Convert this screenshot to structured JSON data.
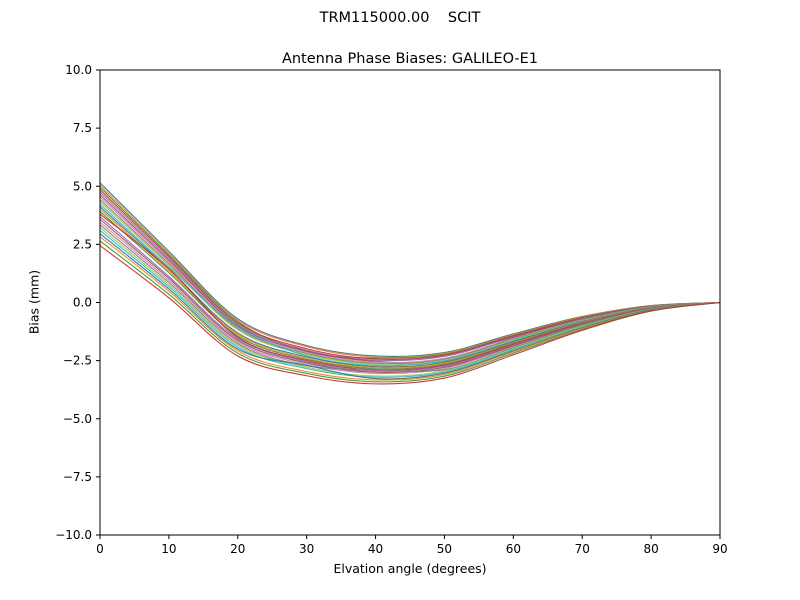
{
  "chart_data": {
    "type": "line",
    "suptitle": "TRM115000.00    SCIT",
    "title": "Antenna Phase Biases: GALILEO-E1",
    "xlabel": "Elvation angle (degrees)",
    "ylabel": "Bias (mm)",
    "xlim": [
      0,
      90
    ],
    "ylim": [
      -10,
      10
    ],
    "grid": false,
    "legend": null,
    "xticks": {
      "values": [
        0,
        10,
        20,
        30,
        40,
        50,
        60,
        70,
        80,
        90
      ],
      "labels": [
        "0",
        "10",
        "20",
        "30",
        "40",
        "50",
        "60",
        "70",
        "80",
        "90"
      ]
    },
    "yticks": {
      "values": [
        -10,
        -7.5,
        -5,
        -2.5,
        0,
        2.5,
        5,
        7.5,
        10
      ],
      "labels": [
        "−10.0",
        "−7.5",
        "−5.0",
        "−2.5",
        "0.0",
        "2.5",
        "5.0",
        "7.5",
        "10.0"
      ]
    },
    "palette": [
      "#1f77b4",
      "#ff7f0e",
      "#2ca02c",
      "#d62728",
      "#9467bd",
      "#8c564b",
      "#e377c2",
      "#7f7f7f",
      "#bcbd22",
      "#17becf"
    ],
    "x": [
      0,
      10,
      20,
      30,
      40,
      50,
      60,
      70,
      80,
      90
    ],
    "series": [
      {
        "values": [
          5.15,
          2.2,
          -0.7,
          -1.85,
          -2.3,
          -2.15,
          -1.35,
          -0.6,
          -0.13,
          0.0
        ]
      },
      {
        "values": [
          5.04,
          2.12,
          -0.76,
          -1.9,
          -2.35,
          -2.19,
          -1.39,
          -0.62,
          -0.14,
          0.0
        ]
      },
      {
        "values": [
          4.95,
          2.05,
          -0.82,
          -2.1,
          -2.39,
          -2.23,
          -1.42,
          -0.65,
          -0.15,
          0.0
        ]
      },
      {
        "values": [
          4.85,
          1.98,
          -0.88,
          -1.99,
          -2.43,
          -2.27,
          -1.45,
          -0.67,
          -0.16,
          0.0
        ]
      },
      {
        "values": [
          4.75,
          1.9,
          -0.94,
          -2.05,
          -2.48,
          -2.32,
          -1.49,
          -0.69,
          -0.17,
          0.0
        ]
      },
      {
        "values": [
          4.64,
          1.82,
          -1.0,
          -2.1,
          -2.53,
          -2.52,
          -1.52,
          -0.71,
          -0.18,
          0.0
        ]
      },
      {
        "values": [
          4.54,
          1.75,
          -1.06,
          -2.14,
          -2.57,
          -2.4,
          -1.55,
          -0.74,
          -0.18,
          0.0
        ]
      },
      {
        "values": [
          4.43,
          1.67,
          -1.12,
          -2.19,
          -2.62,
          -2.44,
          -1.59,
          -0.76,
          -0.19,
          0.0
        ]
      },
      {
        "values": [
          4.34,
          1.6,
          -1.18,
          -2.24,
          -2.66,
          -2.48,
          -1.62,
          -0.78,
          -0.2,
          0.0
        ]
      },
      {
        "values": [
          4.23,
          1.52,
          -1.05,
          -2.29,
          -2.71,
          -2.52,
          -1.66,
          -0.8,
          -0.21,
          0.0
        ]
      },
      {
        "values": [
          4.12,
          1.44,
          -1.31,
          -2.34,
          -2.76,
          -2.57,
          -1.69,
          -0.83,
          -0.22,
          0.0
        ]
      },
      {
        "values": [
          4.02,
          1.36,
          -1.37,
          -2.4,
          -2.8,
          -2.61,
          -1.73,
          -0.85,
          -0.23,
          0.0
        ]
      },
      {
        "values": [
          3.91,
          1.28,
          -1.44,
          -2.45,
          -2.85,
          -2.66,
          -1.76,
          -0.88,
          -0.24,
          0.0
        ]
      },
      {
        "values": [
          3.8,
          1.45,
          -1.5,
          -2.5,
          -2.9,
          -2.7,
          -1.8,
          -0.9,
          -0.25,
          0.0
        ]
      },
      {
        "values": [
          3.69,
          1.12,
          -1.56,
          -2.55,
          -2.95,
          -2.74,
          -1.84,
          -0.92,
          -0.26,
          0.0
        ]
      },
      {
        "values": [
          3.58,
          1.04,
          -1.63,
          -2.6,
          -3.0,
          -2.79,
          -1.87,
          -0.95,
          -0.27,
          0.0
        ]
      },
      {
        "values": [
          3.46,
          0.95,
          -1.7,
          -2.66,
          -3.05,
          -2.84,
          -1.91,
          -0.98,
          -0.28,
          0.0
        ]
      },
      {
        "values": [
          3.34,
          0.86,
          -1.77,
          -2.72,
          -2.88,
          -2.89,
          -1.95,
          -1.0,
          -0.29,
          0.0
        ]
      },
      {
        "values": [
          3.22,
          0.77,
          -1.84,
          -2.78,
          -3.16,
          -2.94,
          -1.99,
          -1.03,
          -0.3,
          0.0
        ]
      },
      {
        "values": [
          3.1,
          0.68,
          -1.92,
          -2.84,
          -3.21,
          -2.99,
          -2.03,
          -1.06,
          -0.31,
          0.0
        ]
      },
      {
        "values": [
          2.96,
          0.58,
          -2.0,
          -2.7,
          -3.27,
          -3.04,
          -2.08,
          -1.09,
          -0.32,
          0.0
        ]
      },
      {
        "values": [
          2.83,
          0.48,
          -2.08,
          -2.97,
          -3.33,
          -3.1,
          -2.12,
          -1.12,
          -0.34,
          0.0
        ]
      },
      {
        "values": [
          2.65,
          0.35,
          -2.18,
          -3.05,
          -3.41,
          -3.17,
          -2.18,
          -1.16,
          -0.35,
          0.0
        ]
      },
      {
        "values": [
          2.45,
          0.2,
          -2.3,
          -3.15,
          -3.5,
          -3.25,
          -2.25,
          -1.2,
          -0.37,
          0.0
        ]
      }
    ]
  },
  "colors": {
    "background": "#ffffff",
    "axes": "#000000"
  }
}
